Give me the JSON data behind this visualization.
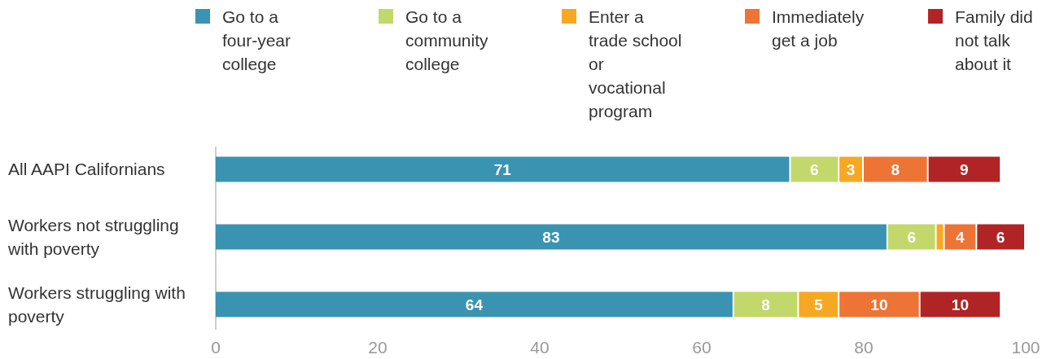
{
  "chart_data": {
    "type": "bar",
    "orientation": "horizontal",
    "stacked": true,
    "categories": [
      "All AAPI Californians",
      "Workers not struggling with poverty",
      "Workers struggling with poverty"
    ],
    "series": [
      {
        "name": "Go to a four-year college",
        "color": "#3a93b0",
        "values": [
          71,
          83,
          64
        ],
        "value_labels": [
          "71",
          "83",
          "64"
        ]
      },
      {
        "name": "Go to a community college",
        "color": "#c3d86a",
        "values": [
          6,
          6,
          8
        ],
        "value_labels": [
          "6",
          "6",
          "8"
        ]
      },
      {
        "name": "Enter a trade school or vocational program",
        "color": "#f7a823",
        "values": [
          3,
          1,
          5
        ],
        "value_labels": [
          "3",
          null,
          "5"
        ]
      },
      {
        "name": "Immediately get a job",
        "color": "#ed7435",
        "values": [
          8,
          4,
          10
        ],
        "value_labels": [
          "8",
          "4",
          "10"
        ]
      },
      {
        "name": "Family did not talk about it",
        "color": "#b12425",
        "values": [
          9,
          6,
          10
        ],
        "value_labels": [
          "9",
          "6",
          "10"
        ]
      }
    ],
    "xlim": [
      0,
      100
    ],
    "xticks": [
      0,
      20,
      40,
      60,
      80,
      100
    ],
    "grid": false,
    "legend": "top"
  }
}
